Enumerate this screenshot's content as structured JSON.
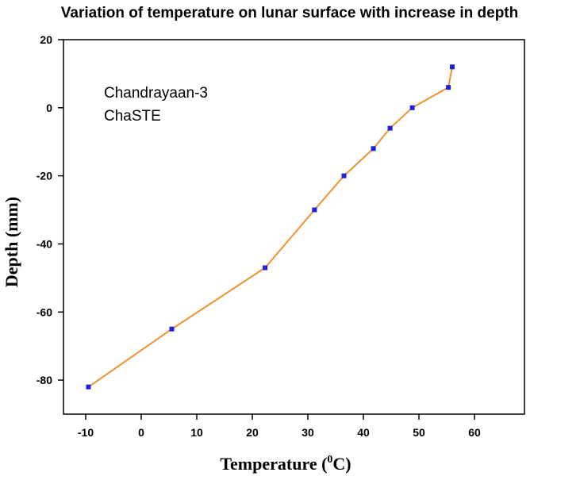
{
  "chart_data": {
    "type": "line",
    "title": "Variation of temperature on lunar surface with increase in depth",
    "xlabel": "Temperature (",
    "xlabel_sup": "0",
    "xlabel_unit": "C)",
    "ylabel": "Depth (mm)",
    "xlim": [
      -14,
      69
    ],
    "ylim": [
      -90,
      20
    ],
    "x_ticks": [
      -10,
      0,
      10,
      20,
      30,
      40,
      50,
      60
    ],
    "y_ticks": [
      20,
      0,
      -20,
      -40,
      -60,
      -80
    ],
    "annotations": [
      "Chandrayaan-3",
      "ChaSTE"
    ],
    "line_color": "#f0922b",
    "marker_color": "#1f1fe0",
    "grid": false,
    "series": [
      {
        "x": [
          -9.5,
          5.5,
          22.3,
          31.2,
          36.5,
          41.8,
          44.8,
          48.8,
          55.3,
          56.0
        ],
        "y": [
          -82,
          -65,
          -47,
          -30,
          -20,
          -12,
          -6,
          0,
          6,
          12
        ]
      }
    ]
  }
}
